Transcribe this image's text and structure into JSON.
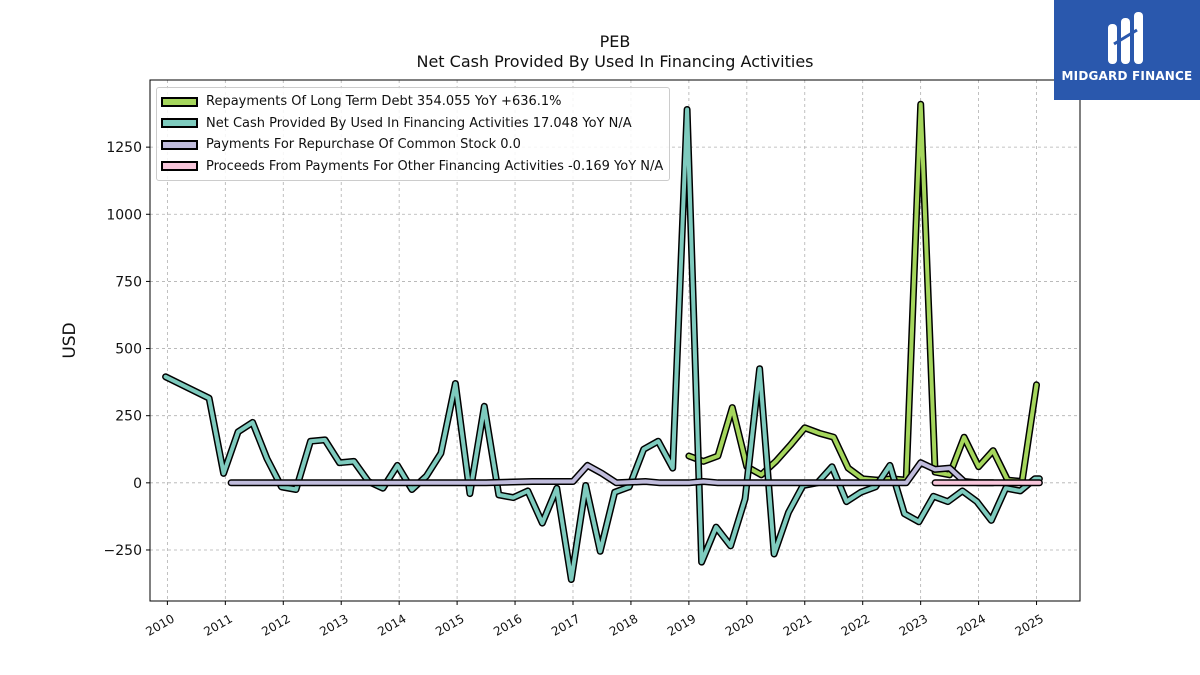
{
  "title": "PEB",
  "subtitle": "Net Cash Provided By Used In Financing Activities",
  "logo": {
    "text": "MIDGARD FINANCE",
    "bg_color": "#2a58ad"
  },
  "chart_data": {
    "type": "line",
    "title": "PEB",
    "subtitle": "Net Cash Provided By Used In Financing Activities",
    "xlabel": "",
    "ylabel": "USD",
    "xlim": [
      2009.7,
      2025.75
    ],
    "ylim": [
      -440,
      1500
    ],
    "yticks": [
      -250,
      0,
      250,
      500,
      750,
      1000,
      1250
    ],
    "ytick_labels": [
      "−250",
      "0",
      "250",
      "500",
      "750",
      "1000",
      "1250"
    ],
    "xticks": [
      2010,
      2011,
      2012,
      2013,
      2014,
      2015,
      2016,
      2017,
      2018,
      2019,
      2020,
      2021,
      2022,
      2023,
      2024,
      2025
    ],
    "xtick_labels": [
      "2010",
      "2011",
      "2012",
      "2013",
      "2014",
      "2015",
      "2016",
      "2017",
      "2018",
      "2019",
      "2020",
      "2021",
      "2022",
      "2023",
      "2024",
      "2025"
    ],
    "grid": true,
    "legend_position": "top-left",
    "series": [
      {
        "name": "Repayments Of Long Term Debt",
        "legend": "Repayments Of Long Term Debt  354.055 YoY +636.1%",
        "color": "#a5d65c",
        "points": [
          [
            2019.0,
            100
          ],
          [
            2019.25,
            80
          ],
          [
            2019.5,
            100
          ],
          [
            2019.75,
            280
          ],
          [
            2020.0,
            60
          ],
          [
            2020.25,
            30
          ],
          [
            2020.5,
            80
          ],
          [
            2020.75,
            140
          ],
          [
            2021.0,
            205
          ],
          [
            2021.25,
            185
          ],
          [
            2021.5,
            170
          ],
          [
            2021.75,
            55
          ],
          [
            2022.0,
            15
          ],
          [
            2022.25,
            10
          ],
          [
            2022.5,
            15
          ],
          [
            2022.75,
            10
          ],
          [
            2023.0,
            1410
          ],
          [
            2023.25,
            40
          ],
          [
            2023.5,
            30
          ],
          [
            2023.75,
            170
          ],
          [
            2024.0,
            60
          ],
          [
            2024.25,
            120
          ],
          [
            2024.5,
            10
          ],
          [
            2024.75,
            5
          ],
          [
            2025.0,
            365
          ]
        ]
      },
      {
        "name": "Net Cash Provided By Used In Financing Activities",
        "legend": "Net Cash Provided By Used In Financing Activities  17.048 YoY N/A",
        "color": "#7ecbbe",
        "points": [
          [
            2009.97,
            395
          ],
          [
            2010.72,
            315
          ],
          [
            2010.97,
            35
          ],
          [
            2011.22,
            190
          ],
          [
            2011.47,
            225
          ],
          [
            2011.72,
            90
          ],
          [
            2011.97,
            -15
          ],
          [
            2012.22,
            -25
          ],
          [
            2012.47,
            155
          ],
          [
            2012.72,
            160
          ],
          [
            2012.97,
            75
          ],
          [
            2013.22,
            80
          ],
          [
            2013.47,
            5
          ],
          [
            2013.72,
            -20
          ],
          [
            2013.97,
            65
          ],
          [
            2014.22,
            -25
          ],
          [
            2014.47,
            25
          ],
          [
            2014.72,
            110
          ],
          [
            2014.97,
            370
          ],
          [
            2015.22,
            -40
          ],
          [
            2015.47,
            285
          ],
          [
            2015.72,
            -45
          ],
          [
            2015.97,
            -55
          ],
          [
            2016.22,
            -30
          ],
          [
            2016.47,
            -150
          ],
          [
            2016.72,
            -20
          ],
          [
            2016.97,
            -360
          ],
          [
            2017.22,
            -10
          ],
          [
            2017.47,
            -255
          ],
          [
            2017.72,
            -35
          ],
          [
            2017.97,
            -15
          ],
          [
            2018.22,
            125
          ],
          [
            2018.47,
            155
          ],
          [
            2018.72,
            55
          ],
          [
            2018.97,
            1390
          ],
          [
            2019.22,
            -295
          ],
          [
            2019.47,
            -165
          ],
          [
            2019.72,
            -235
          ],
          [
            2019.97,
            -60
          ],
          [
            2020.22,
            425
          ],
          [
            2020.47,
            -265
          ],
          [
            2020.72,
            -110
          ],
          [
            2020.97,
            -10
          ],
          [
            2021.22,
            0
          ],
          [
            2021.47,
            60
          ],
          [
            2021.72,
            -70
          ],
          [
            2021.97,
            -35
          ],
          [
            2022.22,
            -15
          ],
          [
            2022.47,
            65
          ],
          [
            2022.72,
            -115
          ],
          [
            2022.97,
            -145
          ],
          [
            2023.22,
            -50
          ],
          [
            2023.47,
            -70
          ],
          [
            2023.72,
            -30
          ],
          [
            2023.97,
            -70
          ],
          [
            2024.22,
            -140
          ],
          [
            2024.47,
            -20
          ],
          [
            2024.72,
            -30
          ],
          [
            2024.97,
            15
          ],
          [
            2025.05,
            15
          ]
        ]
      },
      {
        "name": "Payments For Repurchase Of Common Stock",
        "legend": "Payments For Repurchase Of Common Stock  0.0",
        "color": "#c0bcdc",
        "points": [
          [
            2011.1,
            0
          ],
          [
            2015.0,
            0
          ],
          [
            2015.5,
            0
          ],
          [
            2016.3,
            5
          ],
          [
            2017.0,
            5
          ],
          [
            2017.25,
            65
          ],
          [
            2017.5,
            35
          ],
          [
            2017.75,
            0
          ],
          [
            2018.25,
            5
          ],
          [
            2018.5,
            0
          ],
          [
            2019.0,
            0
          ],
          [
            2019.25,
            5
          ],
          [
            2019.5,
            0
          ],
          [
            2020.0,
            0
          ],
          [
            2021.0,
            0
          ],
          [
            2022.0,
            0
          ],
          [
            2022.75,
            0
          ],
          [
            2023.0,
            75
          ],
          [
            2023.25,
            50
          ],
          [
            2023.5,
            55
          ],
          [
            2023.75,
            5
          ],
          [
            2024.0,
            0
          ],
          [
            2024.25,
            0
          ]
        ]
      },
      {
        "name": "Proceeds From Payments For Other Financing Activities",
        "legend": "Proceeds From Payments For Other Financing Activities  -0.169 YoY N/A",
        "color": "#f7c6da",
        "points": [
          [
            2023.25,
            0
          ],
          [
            2023.5,
            0
          ],
          [
            2023.75,
            0
          ],
          [
            2024.0,
            0
          ],
          [
            2024.25,
            0
          ],
          [
            2024.5,
            0
          ],
          [
            2024.75,
            0
          ],
          [
            2025.05,
            0
          ]
        ]
      }
    ]
  }
}
